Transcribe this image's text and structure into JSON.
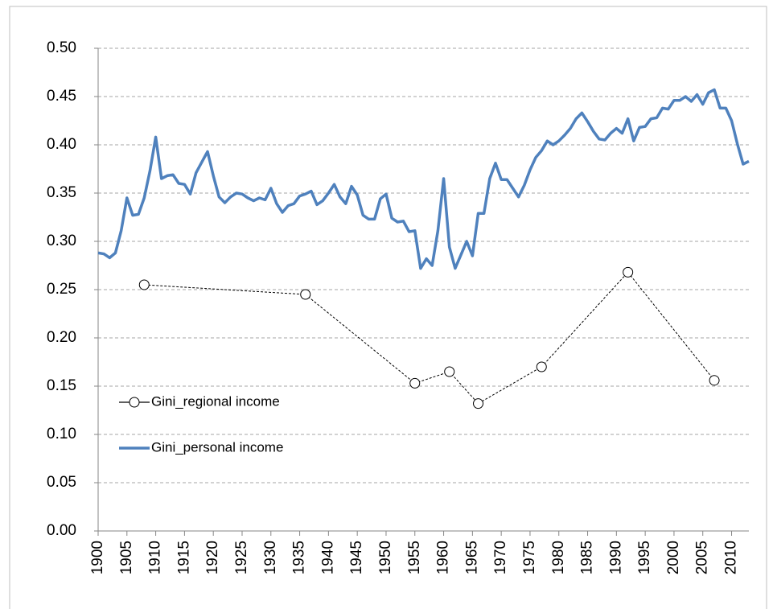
{
  "chart_data": {
    "type": "line",
    "xlim": [
      1900,
      2013
    ],
    "xticks": [
      1900,
      1905,
      1910,
      1915,
      1920,
      1925,
      1930,
      1935,
      1940,
      1945,
      1950,
      1955,
      1960,
      1965,
      1970,
      1975,
      1980,
      1985,
      1990,
      1995,
      2000,
      2005,
      2010
    ],
    "ylim": [
      0,
      0.5
    ],
    "yticks": [
      {
        "value": 0,
        "label": "0.00"
      },
      {
        "value": 0.05,
        "label": "0.05"
      },
      {
        "value": 0.1,
        "label": "0.10"
      },
      {
        "value": 0.15,
        "label": "0.15"
      },
      {
        "value": 0.2,
        "label": "0.20"
      },
      {
        "value": 0.25,
        "label": "0.25"
      },
      {
        "value": 0.3,
        "label": "0.30"
      },
      {
        "value": 0.35,
        "label": "0.35"
      },
      {
        "value": 0.4,
        "label": "0.40"
      },
      {
        "value": 0.45,
        "label": "0.45"
      },
      {
        "value": 0.5,
        "label": "0.50"
      }
    ],
    "grid": true,
    "legend": "left",
    "series": [
      {
        "name": "Gini_regional income",
        "color": "#000000",
        "style": "dashed-circles",
        "x": [
          1908,
          1936,
          1955,
          1961,
          1966,
          1977,
          1992,
          2007
        ],
        "values": [
          0.255,
          0.245,
          0.153,
          0.165,
          0.132,
          0.17,
          0.268,
          0.156
        ]
      },
      {
        "name": "Gini_personal income",
        "color": "#4f81bd",
        "style": "solid",
        "x": [
          1900,
          1901,
          1902,
          1903,
          1904,
          1905,
          1906,
          1907,
          1908,
          1909,
          1910,
          1911,
          1912,
          1913,
          1914,
          1915,
          1916,
          1917,
          1918,
          1919,
          1920,
          1921,
          1922,
          1923,
          1924,
          1925,
          1926,
          1927,
          1928,
          1929,
          1930,
          1931,
          1932,
          1933,
          1934,
          1935,
          1936,
          1937,
          1938,
          1939,
          1940,
          1941,
          1942,
          1943,
          1944,
          1945,
          1946,
          1947,
          1948,
          1949,
          1950,
          1951,
          1952,
          1953,
          1954,
          1955,
          1956,
          1957,
          1958,
          1959,
          1960,
          1961,
          1962,
          1963,
          1964,
          1965,
          1966,
          1967,
          1968,
          1969,
          1970,
          1971,
          1972,
          1973,
          1974,
          1975,
          1976,
          1977,
          1978,
          1979,
          1980,
          1981,
          1982,
          1983,
          1984,
          1985,
          1986,
          1987,
          1988,
          1989,
          1990,
          1991,
          1992,
          1993,
          1994,
          1995,
          1996,
          1997,
          1998,
          1999,
          2000,
          2001,
          2002,
          2003,
          2004,
          2005,
          2006,
          2007,
          2008,
          2009,
          2010,
          2011,
          2012,
          2013
        ],
        "values": [
          0.288,
          0.287,
          0.283,
          0.288,
          0.311,
          0.345,
          0.327,
          0.328,
          0.345,
          0.373,
          0.408,
          0.365,
          0.368,
          0.369,
          0.36,
          0.359,
          0.349,
          0.371,
          0.382,
          0.393,
          0.368,
          0.346,
          0.34,
          0.346,
          0.35,
          0.349,
          0.345,
          0.342,
          0.345,
          0.343,
          0.355,
          0.339,
          0.33,
          0.337,
          0.339,
          0.347,
          0.349,
          0.352,
          0.338,
          0.342,
          0.35,
          0.359,
          0.346,
          0.339,
          0.357,
          0.348,
          0.327,
          0.323,
          0.323,
          0.344,
          0.349,
          0.324,
          0.32,
          0.321,
          0.31,
          0.311,
          0.272,
          0.282,
          0.275,
          0.311,
          0.365,
          0.294,
          0.272,
          0.286,
          0.3,
          0.285,
          0.329,
          0.329,
          0.365,
          0.381,
          0.364,
          0.364,
          0.355,
          0.346,
          0.358,
          0.374,
          0.387,
          0.394,
          0.404,
          0.4,
          0.404,
          0.41,
          0.417,
          0.427,
          0.433,
          0.424,
          0.414,
          0.406,
          0.405,
          0.412,
          0.417,
          0.412,
          0.427,
          0.404,
          0.418,
          0.419,
          0.427,
          0.428,
          0.438,
          0.437,
          0.446,
          0.446,
          0.45,
          0.445,
          0.452,
          0.442,
          0.454,
          0.457,
          0.438,
          0.438,
          0.425,
          0.401,
          0.38,
          0.383
        ]
      }
    ]
  }
}
